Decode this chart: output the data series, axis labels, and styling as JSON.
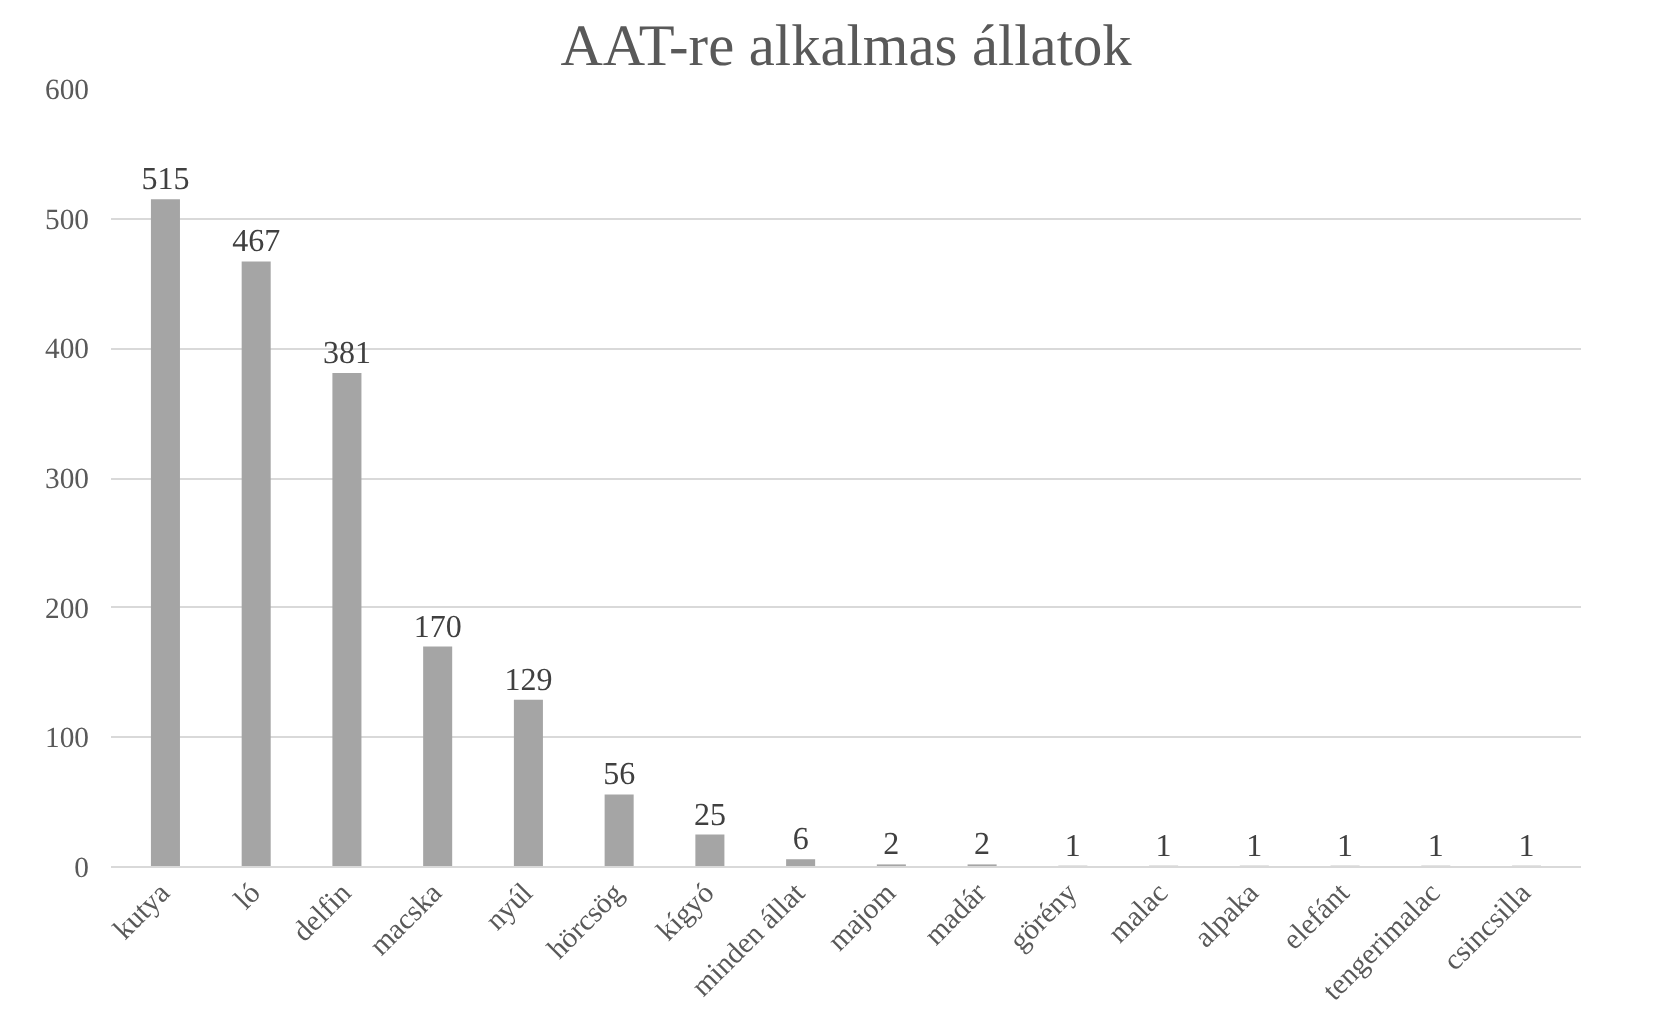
{
  "chart_data": {
    "type": "bar",
    "title": "AAT-re alkalmas állatok",
    "categories": [
      "kutya",
      "ló",
      "delfin",
      "macska",
      "nyúl",
      "hörcsög",
      "kígyó",
      "minden állat",
      "majom",
      "madár",
      "görény",
      "malac",
      "alpaka",
      "elefánt",
      "tengerimalac",
      "csincsilla"
    ],
    "values": [
      515,
      467,
      381,
      170,
      129,
      56,
      25,
      6,
      2,
      2,
      1,
      1,
      1,
      1,
      1,
      1
    ],
    "color": "#a5a5a5",
    "ylim": [
      0,
      600
    ],
    "yticks": [
      0,
      100,
      200,
      300,
      400,
      500,
      600
    ],
    "grid": "y",
    "data_labels": true
  }
}
